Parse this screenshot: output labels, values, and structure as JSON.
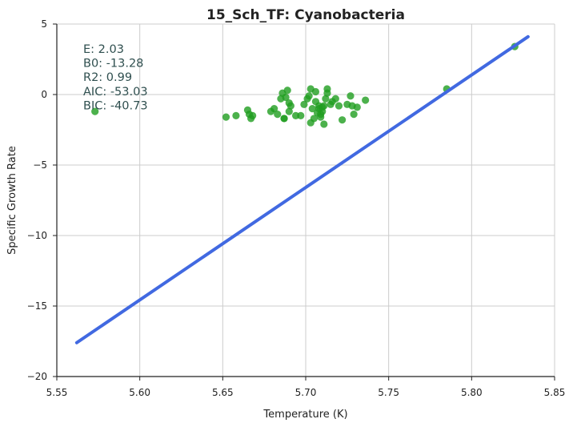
{
  "chart_data": {
    "type": "scatter",
    "title": "15_Sch_TF: Cyanobacteria",
    "xlabel": "Temperature (K)",
    "ylabel": "Specific Growth Rate",
    "xlim": [
      5.55,
      5.85
    ],
    "ylim": [
      -20,
      5
    ],
    "xticks": [
      5.55,
      5.6,
      5.65,
      5.7,
      5.75,
      5.8,
      5.85
    ],
    "xtick_labels": [
      "5.55",
      "5.60",
      "5.65",
      "5.70",
      "5.75",
      "5.80",
      "5.85"
    ],
    "yticks": [
      -20,
      -15,
      -10,
      -5,
      0,
      5
    ],
    "ytick_labels": [
      "−20",
      "−15",
      "−10",
      "−5",
      "0",
      "5"
    ],
    "grid": true,
    "colors": {
      "points": "#1f9e1f",
      "fit_line": "#4169e1",
      "stats_text": "#2f4f4f"
    },
    "stats": [
      "E:  2.03",
      "B0:  -13.28",
      "R2:  0.99",
      "AIC: -53.03",
      "BIC: -40.73"
    ],
    "series": [
      {
        "type": "scatter",
        "x": [
          5.573,
          5.652,
          5.658,
          5.665,
          5.666,
          5.667,
          5.668,
          5.679,
          5.681,
          5.683,
          5.685,
          5.686,
          5.687,
          5.687,
          5.688,
          5.689,
          5.69,
          5.69,
          5.691,
          5.694,
          5.697,
          5.699,
          5.701,
          5.702,
          5.703,
          5.703,
          5.704,
          5.705,
          5.706,
          5.706,
          5.707,
          5.708,
          5.708,
          5.709,
          5.709,
          5.71,
          5.71,
          5.711,
          5.711,
          5.712,
          5.713,
          5.713,
          5.715,
          5.716,
          5.718,
          5.72,
          5.722,
          5.725,
          5.727,
          5.728,
          5.729,
          5.731,
          5.736,
          5.785,
          5.826
        ],
        "y": [
          -1.2,
          -1.6,
          -1.5,
          -1.1,
          -1.4,
          -1.7,
          -1.5,
          -1.2,
          -1.0,
          -1.4,
          -0.3,
          0.1,
          -1.7,
          -1.7,
          -0.2,
          0.3,
          -1.2,
          -0.6,
          -0.8,
          -1.5,
          -1.5,
          -0.7,
          -0.3,
          -0.1,
          -2.0,
          0.4,
          -1.0,
          -1.7,
          0.2,
          -0.5,
          -1.3,
          -0.8,
          -1.0,
          -1.6,
          -1.4,
          -0.9,
          -1.2,
          -0.8,
          -2.1,
          -0.3,
          0.4,
          0.1,
          -0.7,
          -0.5,
          -0.3,
          -0.8,
          -1.8,
          -0.7,
          -0.1,
          -0.8,
          -1.4,
          -0.9,
          -0.4,
          0.4,
          3.4
        ]
      },
      {
        "type": "line",
        "x": [
          5.562,
          5.834
        ],
        "y": [
          -17.6,
          4.1
        ]
      }
    ]
  }
}
